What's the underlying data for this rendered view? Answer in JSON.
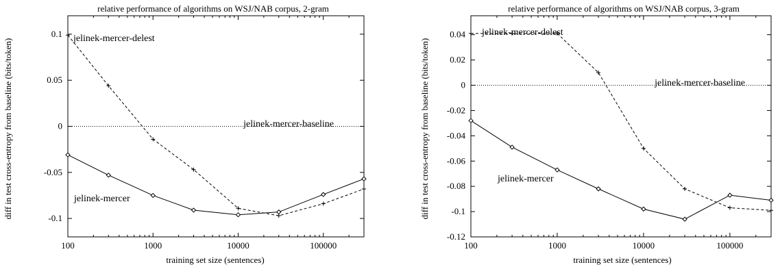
{
  "figure": {
    "ylabel": "diff in test cross-entropy from baseline (bits/token)"
  },
  "chart_data": [
    {
      "type": "line",
      "title": "relative performance of algorithms on WSJ/NAB corpus, 2-gram",
      "xlabel": "training set size (sentences)",
      "ylabel": "diff in test cross-entropy from baseline (bits/token)",
      "xscale": "log",
      "xlim": [
        100,
        300000
      ],
      "ylim": [
        -0.12,
        0.12
      ],
      "xticks": [
        100,
        1000,
        10000,
        100000
      ],
      "xtick_labels": [
        "100",
        "1000",
        "10000",
        "100000"
      ],
      "yticks": [
        -0.1,
        -0.05,
        0,
        0.05,
        0.1
      ],
      "ytick_labels": [
        "-0.1",
        "-0.05",
        "0",
        "0.05",
        "0.1"
      ],
      "series": [
        {
          "name": "jelinek-mercer-delest",
          "style": "dashed",
          "marker": "plus",
          "x": [
            100,
            300,
            1000,
            3000,
            10000,
            30000,
            100000,
            300000
          ],
          "y": [
            0.099,
            0.044,
            -0.014,
            -0.047,
            -0.089,
            -0.097,
            -0.084,
            -0.068
          ]
        },
        {
          "name": "jelinek-mercer-baseline",
          "style": "dotted",
          "marker": "none",
          "x": [
            100,
            300000
          ],
          "y": [
            0,
            0
          ]
        },
        {
          "name": "jelinek-mercer",
          "style": "solid",
          "marker": "diamond",
          "x": [
            100,
            300,
            1000,
            3000,
            10000,
            30000,
            100000,
            300000
          ],
          "y": [
            -0.031,
            -0.053,
            -0.075,
            -0.091,
            -0.096,
            -0.093,
            -0.074,
            -0.057
          ]
        }
      ],
      "annotations": [
        "jelinek-mercer-delest",
        "jelinek-mercer-baseline",
        "jelinek-mercer"
      ]
    },
    {
      "type": "line",
      "title": "relative performance of algorithms on WSJ/NAB corpus, 3-gram",
      "xlabel": "training set size (sentences)",
      "ylabel": "",
      "xscale": "log",
      "xlim": [
        100,
        300000
      ],
      "ylim": [
        -0.12,
        0.055
      ],
      "xticks": [
        100,
        1000,
        10000,
        100000
      ],
      "xtick_labels": [
        "100",
        "1000",
        "10000",
        "100000"
      ],
      "yticks": [
        -0.12,
        -0.1,
        -0.08,
        -0.06,
        -0.04,
        -0.02,
        0,
        0.02,
        0.04
      ],
      "ytick_labels": [
        "-0.12",
        "-0.1",
        "-0.08",
        "-0.06",
        "-0.04",
        "-0.02",
        "0",
        "0.02",
        "0.04"
      ],
      "series": [
        {
          "name": "jelinek-mercer-delest",
          "style": "dashed",
          "marker": "plus",
          "x": [
            100,
            300,
            1000,
            3000,
            10000,
            30000,
            100000,
            300000
          ],
          "y": [
            0.041,
            0.041,
            0.041,
            0.01,
            -0.05,
            -0.082,
            -0.097,
            -0.099
          ]
        },
        {
          "name": "jelinek-mercer-baseline",
          "style": "dotted",
          "marker": "none",
          "x": [
            100,
            300000
          ],
          "y": [
            0,
            0
          ]
        },
        {
          "name": "jelinek-mercer",
          "style": "solid",
          "marker": "diamond",
          "x": [
            100,
            300,
            1000,
            3000,
            10000,
            30000,
            100000,
            300000
          ],
          "y": [
            -0.028,
            -0.049,
            -0.067,
            -0.082,
            -0.098,
            -0.106,
            -0.087,
            -0.091
          ]
        }
      ],
      "annotations": [
        "jelinek-mercer-delest",
        "jelinek-mercer-baseline",
        "jelinek-mercer"
      ]
    }
  ]
}
